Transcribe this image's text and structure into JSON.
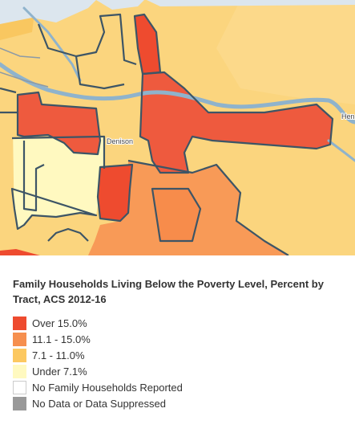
{
  "map": {
    "place_labels": [
      {
        "text": "Denison"
      },
      {
        "text": "Hen"
      }
    ]
  },
  "legend": {
    "title": "Family Households Living Below the Poverty Level, Percent by Tract, ACS 2012-16",
    "items": [
      {
        "label": "Over 15.0%",
        "color": "#ee4b2f"
      },
      {
        "label": "11.1 - 15.0%",
        "color": "#f68f4e"
      },
      {
        "label": "7.1 - 11.0%",
        "color": "#fcc860"
      },
      {
        "label": "Under 7.1%",
        "color": "#fff9c0"
      },
      {
        "label": "No Family Households Reported",
        "color": "#ffffff"
      },
      {
        "label": "No Data or Data Suppressed",
        "color": "#999999"
      }
    ]
  }
}
